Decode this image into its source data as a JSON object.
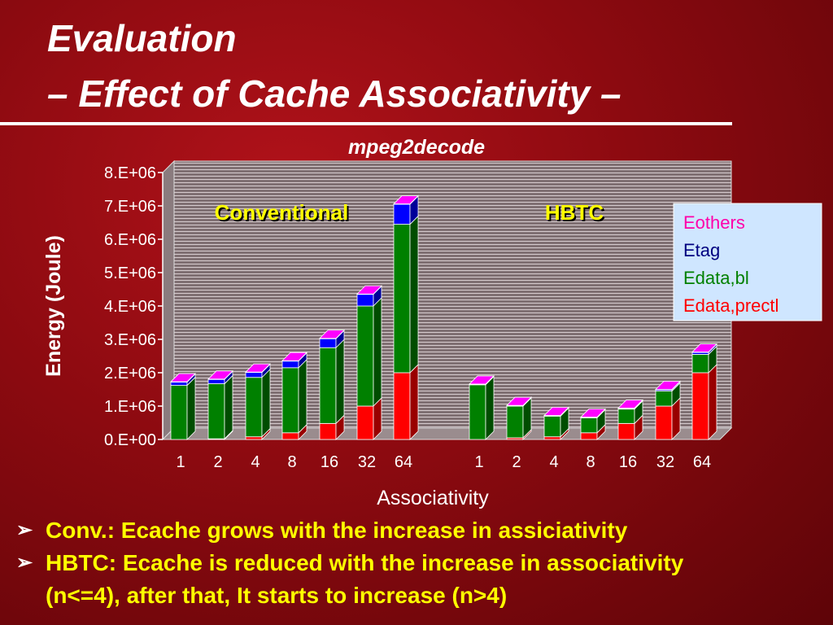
{
  "slide": {
    "title_line1": "Evaluation",
    "title_line2": "– Effect of Cache Associativity –",
    "bullets": [
      "Conv.: Ecache grows with the increase in assiciativity",
      "HBTC: Ecache is reduced with the increase in associativity"
    ],
    "bullet_continuation": "(n<=4), after that, It starts to increase (n>4)"
  },
  "chart_data": {
    "type": "bar",
    "stacked": true,
    "title": "mpeg2decode",
    "ylabel": "Energy (Joule)",
    "xlabel": "Associativity",
    "ylim": [
      0,
      8000000
    ],
    "yticks": [
      "0.E+00",
      "1.E+06",
      "2.E+06",
      "3.E+06",
      "4.E+06",
      "5.E+06",
      "6.E+06",
      "7.E+06",
      "8.E+06"
    ],
    "group_labels": [
      "Conventional",
      "HBTC"
    ],
    "categories": [
      "1",
      "2",
      "4",
      "8",
      "16",
      "32",
      "64"
    ],
    "series_order": [
      "Edata,prectl",
      "Edata,bl",
      "Etag",
      "Eothers"
    ],
    "colors": {
      "Edata,prectl": "#ff0000",
      "Edata,bl": "#008000",
      "Etag": "#0000ff",
      "Eothers": "#ff00ff"
    },
    "legend": [
      "Eothers",
      "Etag",
      "Edata,bl",
      "Edata,prectl"
    ],
    "legend_colors": [
      "#ff00aa",
      "#000080",
      "#008000",
      "#ff0000"
    ],
    "legend_position": "right",
    "groups": [
      {
        "name": "Conventional",
        "Edata,prectl": [
          0,
          20000,
          80000,
          200000,
          480000,
          1000000,
          2000000
        ],
        "Edata,bl": [
          1620000,
          1650000,
          1780000,
          1950000,
          2270000,
          3000000,
          4450000
        ],
        "Etag": [
          100000,
          130000,
          150000,
          200000,
          270000,
          350000,
          600000
        ],
        "Eothers": [
          10000,
          10000,
          10000,
          10000,
          10000,
          10000,
          10000
        ]
      },
      {
        "name": "HBTC",
        "Edata,prectl": [
          0,
          50000,
          80000,
          200000,
          480000,
          1000000,
          2000000
        ],
        "Edata,bl": [
          1640000,
          950000,
          620000,
          450000,
          430000,
          450000,
          550000
        ],
        "Etag": [
          10000,
          10000,
          10000,
          10000,
          20000,
          40000,
          60000
        ],
        "Eothers": [
          10000,
          10000,
          10000,
          10000,
          10000,
          10000,
          10000
        ]
      }
    ]
  }
}
